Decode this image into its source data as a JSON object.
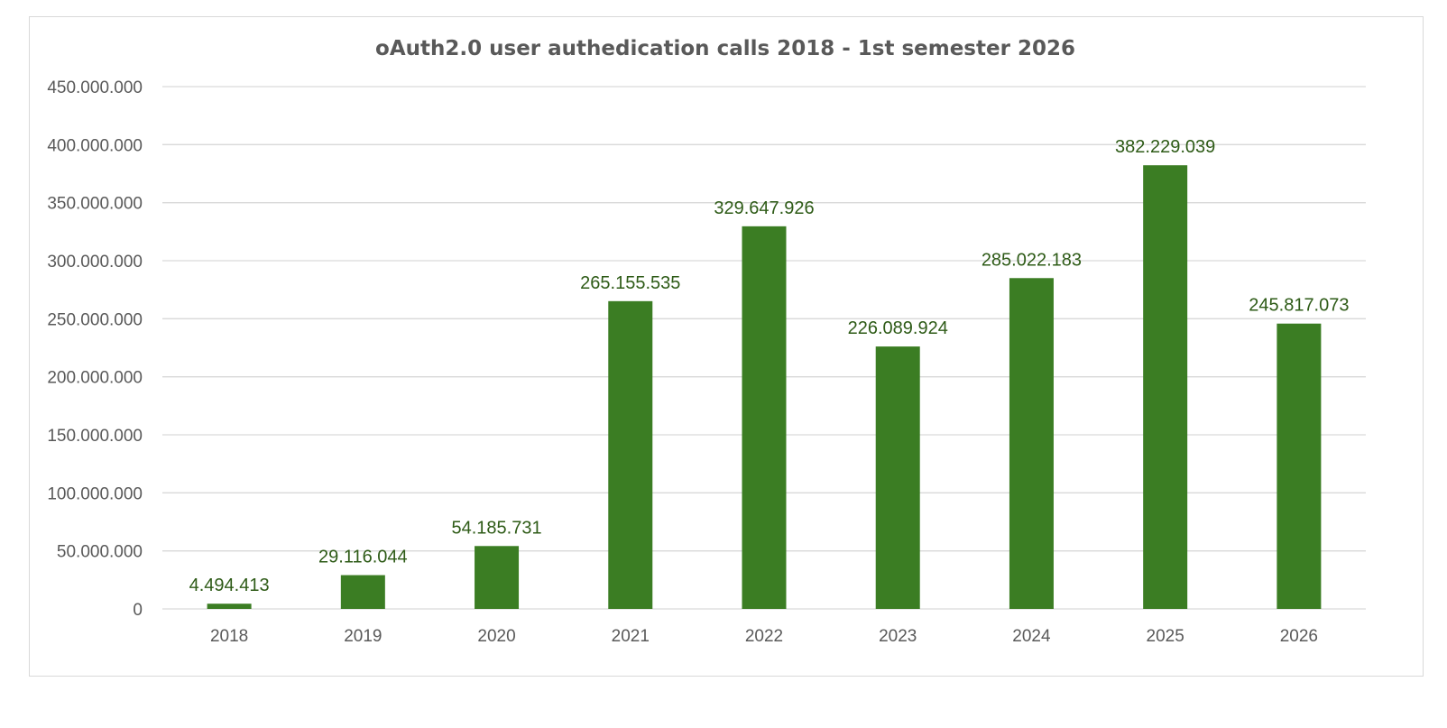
{
  "chart_data": {
    "type": "bar",
    "title": "oAuth2.0 user authedication calls 2018 - 1st semester 2026",
    "xlabel": "",
    "ylabel": "",
    "categories": [
      "2018",
      "2019",
      "2020",
      "2021",
      "2022",
      "2023",
      "2024",
      "2025",
      "2026"
    ],
    "values": [
      4494413,
      29116044,
      54185731,
      265155535,
      329647926,
      226089924,
      285022183,
      382229039,
      245817073
    ],
    "data_labels": [
      "4.494.413",
      "29.116.044",
      "54.185.731",
      "265.155.535",
      "329.647.926",
      "226.089.924",
      "285.022.183",
      "382.229.039",
      "245.817.073"
    ],
    "ylim": [
      0,
      450000000
    ],
    "y_ticks": [
      0,
      50000000,
      100000000,
      150000000,
      200000000,
      250000000,
      300000000,
      350000000,
      400000000,
      450000000
    ],
    "y_tick_labels": [
      "0",
      "50.000.000",
      "100.000.000",
      "150.000.000",
      "200.000.000",
      "250.000.000",
      "300.000.000",
      "350.000.000",
      "400.000.000",
      "450.000.000"
    ],
    "grid": true,
    "legend": "none",
    "colors": {
      "bar": "#3b7d23",
      "data_label": "#2e5b17",
      "grid": "#d9d9d9",
      "text": "#595959"
    }
  }
}
